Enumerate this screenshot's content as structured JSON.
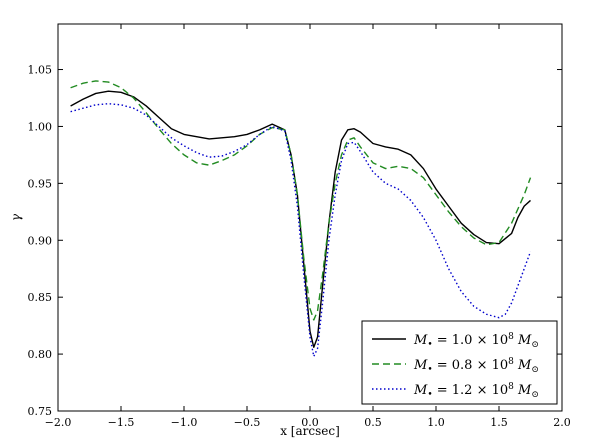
{
  "chart_data": {
    "type": "line",
    "title": "",
    "xlabel": "x [arcsec]",
    "ylabel": "γ",
    "xlim": [
      -2.0,
      2.0
    ],
    "ylim": [
      0.75,
      1.09
    ],
    "xticks": [
      -2.0,
      -1.5,
      -1.0,
      -0.5,
      0.0,
      0.5,
      1.0,
      1.5,
      2.0
    ],
    "xtick_labels": [
      "−2.0",
      "−1.5",
      "−1.0",
      "−0.5",
      "0.0",
      "0.5",
      "1.0",
      "1.5",
      "2.0"
    ],
    "yticks": [
      0.75,
      0.8,
      0.85,
      0.9,
      0.95,
      1.0,
      1.05
    ],
    "ytick_labels": [
      "0.75",
      "0.80",
      "0.85",
      "0.90",
      "0.95",
      "1.00",
      "1.05"
    ],
    "grid": false,
    "legend_position": "bottom-right",
    "series": [
      {
        "name": "M• = 1.0 × 10^8 M⊙",
        "legend": {
          "prefix": "M",
          "sub": "•",
          "eq": " = 1.0 × 10",
          "sup": "8",
          "unit": " M",
          "unit_sub": "⊙"
        },
        "color": "#000000",
        "dash": "solid",
        "points": [
          [
            -1.9,
            1.018
          ],
          [
            -1.8,
            1.024
          ],
          [
            -1.7,
            1.029
          ],
          [
            -1.6,
            1.031
          ],
          [
            -1.5,
            1.03
          ],
          [
            -1.4,
            1.026
          ],
          [
            -1.3,
            1.018
          ],
          [
            -1.2,
            1.008
          ],
          [
            -1.1,
            0.998
          ],
          [
            -1.0,
            0.993
          ],
          [
            -0.9,
            0.991
          ],
          [
            -0.8,
            0.989
          ],
          [
            -0.7,
            0.99
          ],
          [
            -0.6,
            0.991
          ],
          [
            -0.5,
            0.993
          ],
          [
            -0.4,
            0.997
          ],
          [
            -0.3,
            1.002
          ],
          [
            -0.2,
            0.997
          ],
          [
            -0.15,
            0.975
          ],
          [
            -0.1,
            0.94
          ],
          [
            -0.05,
            0.88
          ],
          [
            0.0,
            0.82
          ],
          [
            0.03,
            0.806
          ],
          [
            0.06,
            0.815
          ],
          [
            0.1,
            0.86
          ],
          [
            0.15,
            0.915
          ],
          [
            0.2,
            0.96
          ],
          [
            0.25,
            0.988
          ],
          [
            0.3,
            0.997
          ],
          [
            0.35,
            0.998
          ],
          [
            0.4,
            0.995
          ],
          [
            0.5,
            0.985
          ],
          [
            0.6,
            0.982
          ],
          [
            0.7,
            0.98
          ],
          [
            0.8,
            0.975
          ],
          [
            0.9,
            0.963
          ],
          [
            1.0,
            0.945
          ],
          [
            1.1,
            0.93
          ],
          [
            1.2,
            0.915
          ],
          [
            1.3,
            0.905
          ],
          [
            1.4,
            0.898
          ],
          [
            1.5,
            0.897
          ],
          [
            1.6,
            0.906
          ],
          [
            1.65,
            0.92
          ],
          [
            1.7,
            0.93
          ],
          [
            1.75,
            0.935
          ]
        ]
      },
      {
        "name": "M• = 0.8 × 10^8 M⊙",
        "legend": {
          "prefix": "M",
          "sub": "•",
          "eq": " = 0.8 × 10",
          "sup": "8",
          "unit": " M",
          "unit_sub": "⊙"
        },
        "color": "#228b22",
        "dash": "dashed",
        "points": [
          [
            -1.9,
            1.034
          ],
          [
            -1.8,
            1.038
          ],
          [
            -1.7,
            1.04
          ],
          [
            -1.6,
            1.039
          ],
          [
            -1.5,
            1.034
          ],
          [
            -1.4,
            1.025
          ],
          [
            -1.3,
            1.012
          ],
          [
            -1.2,
            0.998
          ],
          [
            -1.1,
            0.985
          ],
          [
            -1.0,
            0.975
          ],
          [
            -0.9,
            0.968
          ],
          [
            -0.8,
            0.966
          ],
          [
            -0.7,
            0.97
          ],
          [
            -0.6,
            0.975
          ],
          [
            -0.5,
            0.983
          ],
          [
            -0.4,
            0.993
          ],
          [
            -0.3,
            0.999
          ],
          [
            -0.2,
            0.997
          ],
          [
            -0.15,
            0.975
          ],
          [
            -0.1,
            0.94
          ],
          [
            -0.05,
            0.885
          ],
          [
            0.0,
            0.84
          ],
          [
            0.03,
            0.83
          ],
          [
            0.06,
            0.838
          ],
          [
            0.1,
            0.87
          ],
          [
            0.15,
            0.915
          ],
          [
            0.2,
            0.95
          ],
          [
            0.25,
            0.975
          ],
          [
            0.3,
            0.988
          ],
          [
            0.35,
            0.99
          ],
          [
            0.4,
            0.982
          ],
          [
            0.5,
            0.968
          ],
          [
            0.6,
            0.963
          ],
          [
            0.7,
            0.965
          ],
          [
            0.8,
            0.963
          ],
          [
            0.9,
            0.955
          ],
          [
            1.0,
            0.94
          ],
          [
            1.1,
            0.925
          ],
          [
            1.2,
            0.912
          ],
          [
            1.3,
            0.902
          ],
          [
            1.4,
            0.896
          ],
          [
            1.5,
            0.898
          ],
          [
            1.6,
            0.915
          ],
          [
            1.7,
            0.94
          ],
          [
            1.75,
            0.955
          ]
        ]
      },
      {
        "name": "M• = 1.2 × 10^8 M⊙",
        "legend": {
          "prefix": "M",
          "sub": "•",
          "eq": " = 1.2 × 10",
          "sup": "8",
          "unit": " M",
          "unit_sub": "⊙"
        },
        "color": "#0000cc",
        "dash": "dotted",
        "points": [
          [
            -1.9,
            1.013
          ],
          [
            -1.8,
            1.016
          ],
          [
            -1.7,
            1.019
          ],
          [
            -1.6,
            1.02
          ],
          [
            -1.5,
            1.019
          ],
          [
            -1.4,
            1.016
          ],
          [
            -1.3,
            1.01
          ],
          [
            -1.2,
            1.0
          ],
          [
            -1.1,
            0.99
          ],
          [
            -1.0,
            0.983
          ],
          [
            -0.9,
            0.977
          ],
          [
            -0.8,
            0.973
          ],
          [
            -0.7,
            0.974
          ],
          [
            -0.6,
            0.978
          ],
          [
            -0.5,
            0.984
          ],
          [
            -0.4,
            0.993
          ],
          [
            -0.3,
            1.0
          ],
          [
            -0.2,
            0.996
          ],
          [
            -0.15,
            0.97
          ],
          [
            -0.1,
            0.93
          ],
          [
            -0.05,
            0.87
          ],
          [
            0.0,
            0.815
          ],
          [
            0.03,
            0.798
          ],
          [
            0.06,
            0.805
          ],
          [
            0.1,
            0.845
          ],
          [
            0.15,
            0.9
          ],
          [
            0.2,
            0.94
          ],
          [
            0.25,
            0.97
          ],
          [
            0.3,
            0.985
          ],
          [
            0.35,
            0.986
          ],
          [
            0.4,
            0.978
          ],
          [
            0.5,
            0.96
          ],
          [
            0.6,
            0.95
          ],
          [
            0.7,
            0.945
          ],
          [
            0.8,
            0.935
          ],
          [
            0.9,
            0.92
          ],
          [
            1.0,
            0.9
          ],
          [
            1.1,
            0.875
          ],
          [
            1.2,
            0.855
          ],
          [
            1.3,
            0.842
          ],
          [
            1.4,
            0.835
          ],
          [
            1.5,
            0.832
          ],
          [
            1.55,
            0.835
          ],
          [
            1.6,
            0.845
          ],
          [
            1.65,
            0.86
          ],
          [
            1.7,
            0.875
          ],
          [
            1.75,
            0.89
          ]
        ]
      }
    ]
  }
}
